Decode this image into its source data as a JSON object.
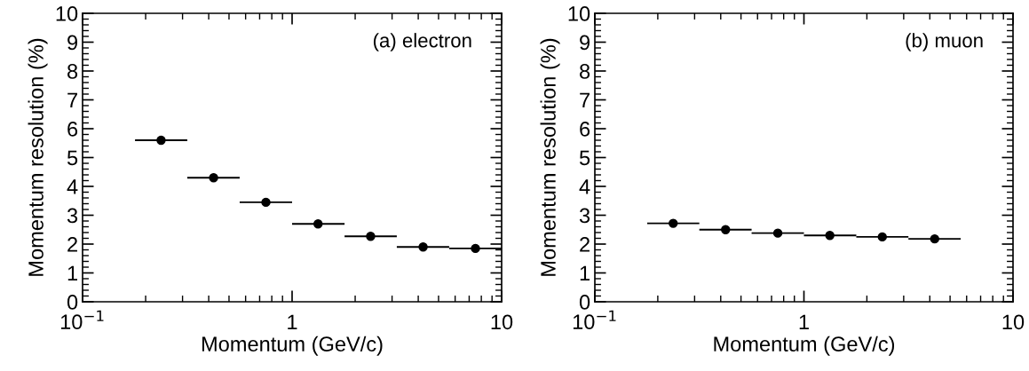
{
  "chart_data": [
    {
      "type": "scatter",
      "xlabel": "Momentum (GeV/c)",
      "ylabel": "Momentum resolution (%)",
      "annotations": [
        "(a) electron"
      ],
      "x": [
        0.237,
        0.422,
        0.75,
        1.33,
        2.37,
        4.22,
        7.5
      ],
      "values": [
        5.6,
        4.3,
        3.45,
        2.7,
        2.27,
        1.9,
        1.85
      ],
      "xerrors": [
        [
          0.178,
          0.316
        ],
        [
          0.316,
          0.562
        ],
        [
          0.562,
          1.0
        ],
        [
          1.0,
          1.78
        ],
        [
          1.78,
          3.16
        ],
        [
          3.16,
          5.62
        ],
        [
          5.62,
          10
        ]
      ],
      "color": "#000000",
      "marker": "circle",
      "log": "x",
      "xlim": [
        0.1,
        10
      ],
      "xticks": [
        {
          "value": 0.1,
          "label": "10$^{−1}$"
        },
        1,
        10
      ],
      "ylim": [
        0,
        10
      ],
      "yticks": [
        0,
        1,
        2,
        3,
        4,
        5,
        6,
        7,
        8,
        9,
        10
      ],
      "grid": false,
      "legend": false
    },
    {
      "type": "scatter",
      "xlabel": "Momentum (GeV/c)",
      "ylabel": "Momentum resolution (%)",
      "annotations": [
        "(b) muon"
      ],
      "x": [
        0.237,
        0.422,
        0.75,
        1.33,
        2.37,
        4.22
      ],
      "values": [
        2.72,
        2.5,
        2.38,
        2.3,
        2.25,
        2.18
      ],
      "xerrors": [
        [
          0.178,
          0.316
        ],
        [
          0.316,
          0.562
        ],
        [
          0.562,
          1.0
        ],
        [
          1.0,
          1.78
        ],
        [
          1.78,
          3.16
        ],
        [
          3.16,
          5.62
        ]
      ],
      "color": "#000000",
      "marker": "circle",
      "log": "x",
      "xlim": [
        0.1,
        10
      ],
      "xticks": [
        {
          "value": 0.1,
          "label": "10$^{−1}$"
        },
        1,
        10
      ],
      "ylim": [
        0,
        10
      ],
      "yticks": [
        0,
        1,
        2,
        3,
        4,
        5,
        6,
        7,
        8,
        9,
        10
      ],
      "grid": false,
      "legend": false
    }
  ]
}
